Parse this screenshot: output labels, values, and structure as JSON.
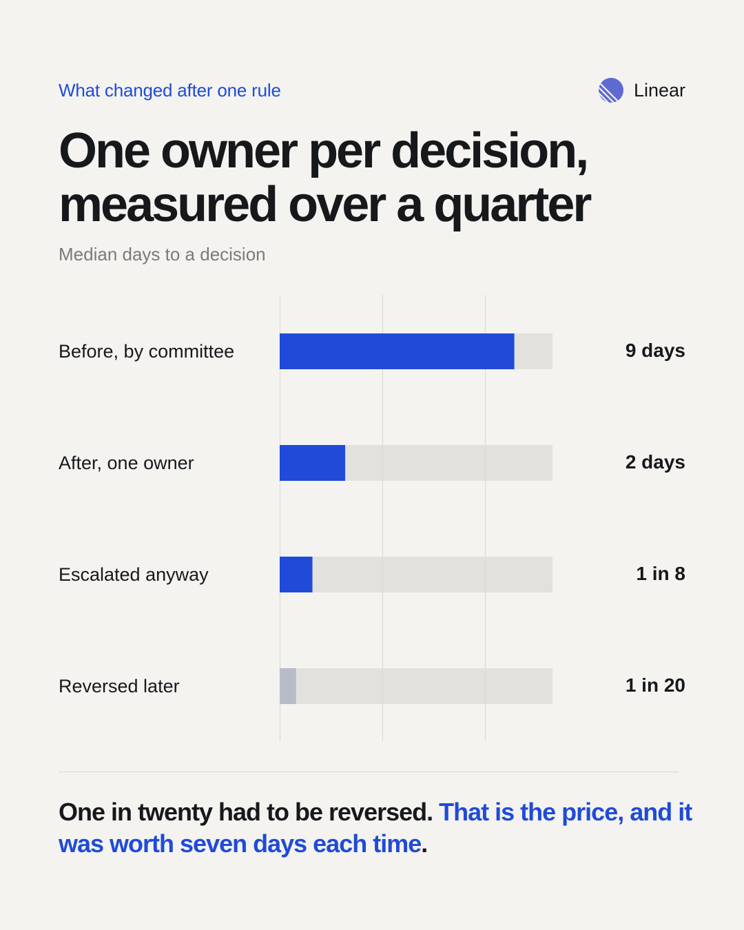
{
  "eyebrow": "What changed after one rule",
  "brand": {
    "name": "Linear",
    "icon": "linear-logo-icon"
  },
  "title_line1": "One owner per decision,",
  "title_line2": "measured over a quarter",
  "subtitle": "Median days to a decision",
  "colors": {
    "accent": "#1f4bd8",
    "muted_bar": "#b8bcc7",
    "track": "#e2e1de",
    "grid": "#dcdbd7"
  },
  "chart_data": {
    "type": "bar",
    "orientation": "horizontal",
    "title": "",
    "categories": [
      "Before, by committee",
      "After, one owner",
      "Escalated anyway",
      "Reversed later"
    ],
    "values": [
      86,
      24,
      12,
      6
    ],
    "value_labels": [
      "9 days",
      "2 days",
      "1 in 8",
      "1 in 20"
    ],
    "value_scale": "percent of track",
    "bar_colors": [
      "#1f4bd8",
      "#1f4bd8",
      "#1f4bd8",
      "#b8bcc7"
    ],
    "xlim": [
      0,
      100
    ],
    "grid": true
  },
  "footer": {
    "plain": "One in twenty had to be reversed. ",
    "highlight": "That is the price, and it was worth seven days each time",
    "end": "."
  }
}
